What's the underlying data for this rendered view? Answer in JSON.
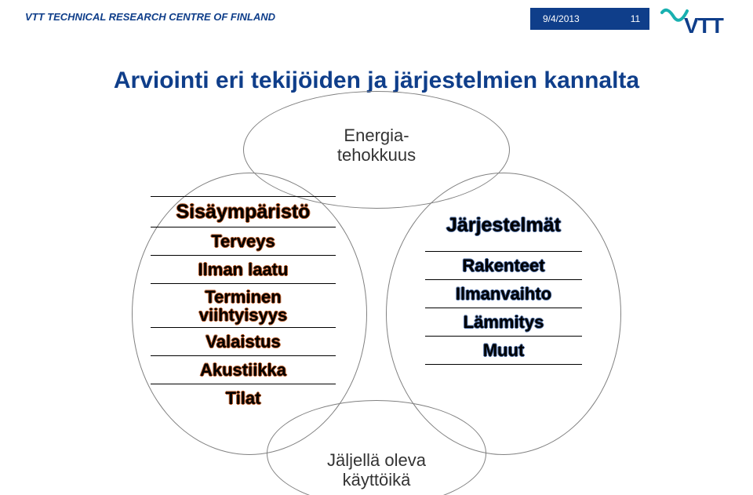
{
  "header": {
    "org": "VTT TECHNICAL RESEARCH CENTRE OF FINLAND",
    "org_color": "#0f3e8a",
    "date": "9/4/2013",
    "page": "11",
    "badge_bg": "#0f3e8a",
    "logo_text": "VTT",
    "logo_color": "#0f3e8a",
    "logo_accent": "#18b0b0"
  },
  "title": {
    "text": "Arviointi eri tekijöiden ja järjestelmien kannalta",
    "color": "#0f3e8a"
  },
  "diagram": {
    "ellipse_border": "#808080",
    "top_label_line1": "Energia-",
    "top_label_line2": "tehokkuus",
    "bottom_label_line1": "Jäljellä oleva",
    "bottom_label_line2": "käyttöikä",
    "circle_text_color": "#333333",
    "left_box": {
      "header": "Sisäympäristö",
      "items": [
        "Terveys",
        "Ilman laatu",
        "Terminen viihtyisyys",
        "Valaistus",
        "Akustiikka",
        "Tilat"
      ]
    },
    "right_box": {
      "header": "Järjestelmät",
      "items": [
        "Rakenteet",
        "Ilmanvaihto",
        "Lämmitys",
        "Muut"
      ]
    }
  },
  "style": {
    "left_shadow": "#b85c2a",
    "right_shadow": "#4a6aa0"
  }
}
